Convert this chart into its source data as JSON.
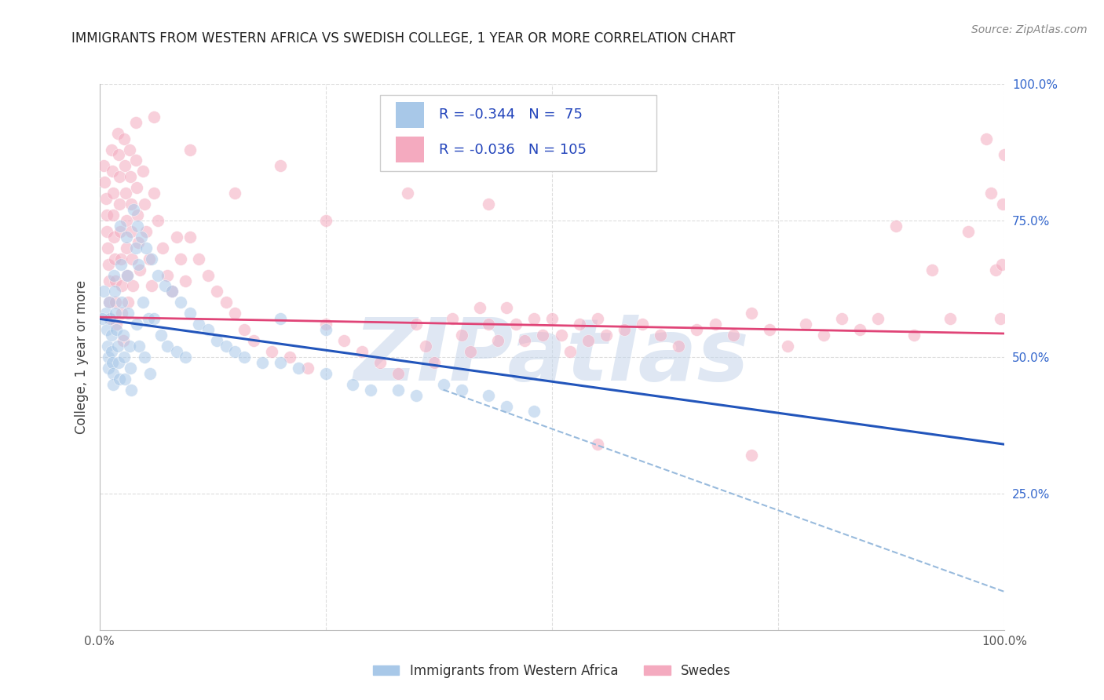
{
  "title": "IMMIGRANTS FROM WESTERN AFRICA VS SWEDISH COLLEGE, 1 YEAR OR MORE CORRELATION CHART",
  "source": "Source: ZipAtlas.com",
  "ylabel": "College, 1 year or more",
  "legend_label1": "Immigrants from Western Africa",
  "legend_label2": "Swedes",
  "blue_color": "#A8C8E8",
  "pink_color": "#F4AABF",
  "blue_line_color": "#2255BB",
  "pink_line_color": "#E04477",
  "dash_color": "#99BBDD",
  "watermark": "ZIPatlas",
  "watermark_color": "#C5D5EA",
  "blue_scatter": [
    [
      0.005,
      0.62
    ],
    [
      0.007,
      0.58
    ],
    [
      0.008,
      0.55
    ],
    [
      0.009,
      0.52
    ],
    [
      0.01,
      0.5
    ],
    [
      0.01,
      0.48
    ],
    [
      0.011,
      0.6
    ],
    [
      0.012,
      0.57
    ],
    [
      0.013,
      0.54
    ],
    [
      0.013,
      0.51
    ],
    [
      0.014,
      0.49
    ],
    [
      0.015,
      0.47
    ],
    [
      0.015,
      0.45
    ],
    [
      0.016,
      0.65
    ],
    [
      0.017,
      0.62
    ],
    [
      0.018,
      0.58
    ],
    [
      0.019,
      0.55
    ],
    [
      0.02,
      0.52
    ],
    [
      0.021,
      0.49
    ],
    [
      0.022,
      0.46
    ],
    [
      0.023,
      0.74
    ],
    [
      0.024,
      0.67
    ],
    [
      0.025,
      0.6
    ],
    [
      0.026,
      0.54
    ],
    [
      0.027,
      0.5
    ],
    [
      0.028,
      0.46
    ],
    [
      0.03,
      0.72
    ],
    [
      0.031,
      0.65
    ],
    [
      0.032,
      0.58
    ],
    [
      0.033,
      0.52
    ],
    [
      0.034,
      0.48
    ],
    [
      0.035,
      0.44
    ],
    [
      0.038,
      0.77
    ],
    [
      0.04,
      0.7
    ],
    [
      0.041,
      0.56
    ],
    [
      0.042,
      0.74
    ],
    [
      0.043,
      0.67
    ],
    [
      0.044,
      0.52
    ],
    [
      0.046,
      0.72
    ],
    [
      0.048,
      0.6
    ],
    [
      0.05,
      0.5
    ],
    [
      0.052,
      0.7
    ],
    [
      0.054,
      0.57
    ],
    [
      0.056,
      0.47
    ],
    [
      0.058,
      0.68
    ],
    [
      0.06,
      0.57
    ],
    [
      0.065,
      0.65
    ],
    [
      0.068,
      0.54
    ],
    [
      0.072,
      0.63
    ],
    [
      0.075,
      0.52
    ],
    [
      0.08,
      0.62
    ],
    [
      0.085,
      0.51
    ],
    [
      0.09,
      0.6
    ],
    [
      0.095,
      0.5
    ],
    [
      0.1,
      0.58
    ],
    [
      0.11,
      0.56
    ],
    [
      0.12,
      0.55
    ],
    [
      0.13,
      0.53
    ],
    [
      0.14,
      0.52
    ],
    [
      0.15,
      0.51
    ],
    [
      0.16,
      0.5
    ],
    [
      0.18,
      0.49
    ],
    [
      0.2,
      0.49
    ],
    [
      0.22,
      0.48
    ],
    [
      0.25,
      0.47
    ],
    [
      0.28,
      0.45
    ],
    [
      0.3,
      0.44
    ],
    [
      0.33,
      0.44
    ],
    [
      0.35,
      0.43
    ],
    [
      0.38,
      0.45
    ],
    [
      0.4,
      0.44
    ],
    [
      0.43,
      0.43
    ],
    [
      0.45,
      0.41
    ],
    [
      0.48,
      0.4
    ],
    [
      0.2,
      0.57
    ],
    [
      0.25,
      0.55
    ],
    [
      0.003,
      0.57
    ]
  ],
  "pink_scatter": [
    [
      0.005,
      0.85
    ],
    [
      0.006,
      0.82
    ],
    [
      0.007,
      0.79
    ],
    [
      0.008,
      0.76
    ],
    [
      0.008,
      0.73
    ],
    [
      0.009,
      0.7
    ],
    [
      0.01,
      0.67
    ],
    [
      0.011,
      0.64
    ],
    [
      0.011,
      0.6
    ],
    [
      0.012,
      0.57
    ],
    [
      0.013,
      0.88
    ],
    [
      0.014,
      0.84
    ],
    [
      0.015,
      0.8
    ],
    [
      0.015,
      0.76
    ],
    [
      0.016,
      0.72
    ],
    [
      0.017,
      0.68
    ],
    [
      0.018,
      0.64
    ],
    [
      0.018,
      0.6
    ],
    [
      0.019,
      0.56
    ],
    [
      0.02,
      0.91
    ],
    [
      0.021,
      0.87
    ],
    [
      0.022,
      0.83
    ],
    [
      0.022,
      0.78
    ],
    [
      0.023,
      0.73
    ],
    [
      0.024,
      0.68
    ],
    [
      0.025,
      0.63
    ],
    [
      0.025,
      0.58
    ],
    [
      0.026,
      0.53
    ],
    [
      0.027,
      0.9
    ],
    [
      0.028,
      0.85
    ],
    [
      0.029,
      0.8
    ],
    [
      0.03,
      0.75
    ],
    [
      0.03,
      0.7
    ],
    [
      0.031,
      0.65
    ],
    [
      0.032,
      0.6
    ],
    [
      0.033,
      0.88
    ],
    [
      0.034,
      0.83
    ],
    [
      0.035,
      0.78
    ],
    [
      0.035,
      0.73
    ],
    [
      0.036,
      0.68
    ],
    [
      0.037,
      0.63
    ],
    [
      0.04,
      0.86
    ],
    [
      0.041,
      0.81
    ],
    [
      0.042,
      0.76
    ],
    [
      0.043,
      0.71
    ],
    [
      0.045,
      0.66
    ],
    [
      0.048,
      0.84
    ],
    [
      0.05,
      0.78
    ],
    [
      0.052,
      0.73
    ],
    [
      0.055,
      0.68
    ],
    [
      0.058,
      0.63
    ],
    [
      0.06,
      0.8
    ],
    [
      0.065,
      0.75
    ],
    [
      0.07,
      0.7
    ],
    [
      0.075,
      0.65
    ],
    [
      0.08,
      0.62
    ],
    [
      0.085,
      0.72
    ],
    [
      0.09,
      0.68
    ],
    [
      0.095,
      0.64
    ],
    [
      0.1,
      0.72
    ],
    [
      0.11,
      0.68
    ],
    [
      0.12,
      0.65
    ],
    [
      0.13,
      0.62
    ],
    [
      0.14,
      0.6
    ],
    [
      0.15,
      0.58
    ],
    [
      0.16,
      0.55
    ],
    [
      0.17,
      0.53
    ],
    [
      0.19,
      0.51
    ],
    [
      0.21,
      0.5
    ],
    [
      0.23,
      0.48
    ],
    [
      0.25,
      0.56
    ],
    [
      0.27,
      0.53
    ],
    [
      0.29,
      0.51
    ],
    [
      0.31,
      0.49
    ],
    [
      0.33,
      0.47
    ],
    [
      0.35,
      0.56
    ],
    [
      0.36,
      0.52
    ],
    [
      0.37,
      0.49
    ],
    [
      0.39,
      0.57
    ],
    [
      0.4,
      0.54
    ],
    [
      0.41,
      0.51
    ],
    [
      0.42,
      0.59
    ],
    [
      0.43,
      0.56
    ],
    [
      0.44,
      0.53
    ],
    [
      0.45,
      0.59
    ],
    [
      0.46,
      0.56
    ],
    [
      0.47,
      0.53
    ],
    [
      0.48,
      0.57
    ],
    [
      0.49,
      0.54
    ],
    [
      0.5,
      0.57
    ],
    [
      0.51,
      0.54
    ],
    [
      0.52,
      0.51
    ],
    [
      0.53,
      0.56
    ],
    [
      0.54,
      0.53
    ],
    [
      0.55,
      0.57
    ],
    [
      0.56,
      0.54
    ],
    [
      0.58,
      0.55
    ],
    [
      0.6,
      0.56
    ],
    [
      0.62,
      0.54
    ],
    [
      0.64,
      0.52
    ],
    [
      0.66,
      0.55
    ],
    [
      0.68,
      0.56
    ],
    [
      0.7,
      0.54
    ],
    [
      0.72,
      0.58
    ],
    [
      0.74,
      0.55
    ],
    [
      0.76,
      0.52
    ],
    [
      0.78,
      0.56
    ],
    [
      0.8,
      0.54
    ],
    [
      0.82,
      0.57
    ],
    [
      0.84,
      0.55
    ],
    [
      0.86,
      0.57
    ],
    [
      0.88,
      0.74
    ],
    [
      0.9,
      0.54
    ],
    [
      0.92,
      0.66
    ],
    [
      0.94,
      0.57
    ],
    [
      0.96,
      0.73
    ],
    [
      0.98,
      0.9
    ],
    [
      0.985,
      0.8
    ],
    [
      0.99,
      0.66
    ],
    [
      0.995,
      0.57
    ],
    [
      0.997,
      0.67
    ],
    [
      0.998,
      0.78
    ],
    [
      1.0,
      0.87
    ],
    [
      0.72,
      0.32
    ],
    [
      0.55,
      0.34
    ],
    [
      0.25,
      0.75
    ],
    [
      0.34,
      0.8
    ],
    [
      0.43,
      0.78
    ],
    [
      0.15,
      0.8
    ],
    [
      0.2,
      0.85
    ],
    [
      0.1,
      0.88
    ],
    [
      0.06,
      0.94
    ],
    [
      0.04,
      0.93
    ]
  ],
  "blue_trend_x": [
    0.0,
    1.0
  ],
  "blue_trend_y": [
    0.57,
    0.34
  ],
  "pink_trend_x": [
    0.0,
    1.0
  ],
  "pink_trend_y": [
    0.573,
    0.543
  ],
  "dash_trend_x": [
    0.38,
    1.0
  ],
  "dash_trend_y": [
    0.44,
    0.07
  ],
  "xlim": [
    0.0,
    1.0
  ],
  "ylim": [
    0.0,
    1.0
  ],
  "grid_color": "#DDDDDD",
  "right_ytick_vals": [
    0.25,
    0.5,
    0.75,
    1.0
  ],
  "right_ytick_labels": [
    "25.0%",
    "50.0%",
    "75.0%",
    "100.0%"
  ],
  "xtick_vals": [
    0.0,
    1.0
  ],
  "xtick_labels": [
    "0.0%",
    "100.0%"
  ]
}
